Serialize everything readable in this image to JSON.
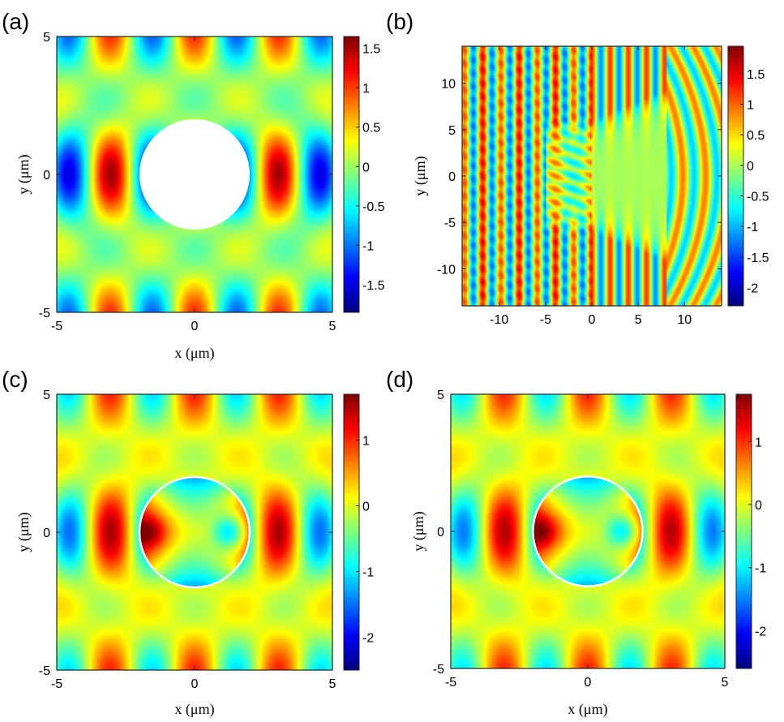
{
  "chart_data": [
    {
      "id": "a",
      "type": "heatmap",
      "panel_label": "(a)",
      "xlabel": "x (μm)",
      "ylabel": "y (μm)",
      "xlim": [
        -5,
        5
      ],
      "ylim": [
        -5,
        5
      ],
      "xticks": [
        -5,
        0,
        5
      ],
      "yticks": [
        -5,
        0,
        5
      ],
      "colorbar": {
        "min": -1.85,
        "max": 1.65,
        "ticks": [
          1.5,
          1,
          0.5,
          0,
          -0.5,
          -1,
          -1.5
        ],
        "tick_labels": [
          "1.5",
          "1",
          "0.5",
          "0",
          "-0.5",
          "-1",
          "-1.5"
        ]
      },
      "colormap": "jet",
      "field": {
        "kx": 2.0,
        "wave_amp": 0.55,
        "column_amp": 1.0,
        "column_spacing": 3.0,
        "ky": 1.6,
        "inner": "masked"
      },
      "scatterer": {
        "shape": "circle",
        "cx": 0,
        "cy": 0,
        "r": 2,
        "style": "white-fill"
      }
    },
    {
      "id": "b",
      "type": "heatmap",
      "panel_label": "(b)",
      "xlabel": "",
      "ylabel": "y (μm)",
      "xlim": [
        -14,
        14
      ],
      "ylim": [
        -14,
        14
      ],
      "xticks": [
        -10,
        -5,
        0,
        5,
        10
      ],
      "yticks": [
        -10,
        -5,
        0,
        5,
        10
      ],
      "colorbar": {
        "min": -2.3,
        "max": 1.95,
        "ticks": [
          1.5,
          1,
          0.5,
          0,
          -0.5,
          -1,
          -1.5,
          -2
        ],
        "tick_labels": [
          "1.5",
          "1",
          "0.5",
          "0",
          "-0.5",
          "-1",
          "-1.5",
          "-2"
        ]
      },
      "colormap": "jet",
      "field": {
        "kx": 3.2,
        "wave_amp": 1.2,
        "ky": 2.2,
        "shadow_edge_x": -4.5,
        "shadow_radius": 4.5
      }
    },
    {
      "id": "c",
      "type": "heatmap",
      "panel_label": "(c)",
      "xlabel": "x (μm)",
      "ylabel": "y (μm)",
      "xlim": [
        -5,
        5
      ],
      "ylim": [
        -5,
        5
      ],
      "xticks": [
        -5,
        0,
        5
      ],
      "yticks": [
        -5,
        0,
        5
      ],
      "colorbar": {
        "min": -2.5,
        "max": 1.7,
        "ticks": [
          1,
          0,
          -1,
          -2
        ],
        "tick_labels": [
          "1",
          "0",
          "-1",
          "-2"
        ]
      },
      "colormap": "jet",
      "field": {
        "kx": 2.0,
        "wave_amp": 0.55,
        "column_amp": 1.0,
        "column_spacing": 3.0,
        "ky": 1.6,
        "inner": "mode"
      },
      "scatterer": {
        "shape": "circle",
        "cx": 0,
        "cy": 0,
        "r": 2,
        "style": "white-outline"
      }
    },
    {
      "id": "d",
      "type": "heatmap",
      "panel_label": "(d)",
      "xlabel": "x (μm)",
      "ylabel": "y (μm)",
      "xlim": [
        -5,
        5
      ],
      "ylim": [
        -5,
        5
      ],
      "xticks": [
        -5,
        0,
        5
      ],
      "yticks": [
        -5,
        0,
        5
      ],
      "colorbar": {
        "min": -2.6,
        "max": 1.75,
        "ticks": [
          1,
          0,
          -1,
          -2
        ],
        "tick_labels": [
          "1",
          "0",
          "-1",
          "-2"
        ]
      },
      "colormap": "jet",
      "field": {
        "kx": 2.0,
        "wave_amp": 0.55,
        "column_amp": 1.0,
        "column_spacing": 3.0,
        "ky": 1.6,
        "inner": "mode"
      },
      "scatterer": {
        "shape": "circle",
        "cx": 0,
        "cy": 0,
        "r": 2,
        "style": "white-outline"
      }
    }
  ]
}
